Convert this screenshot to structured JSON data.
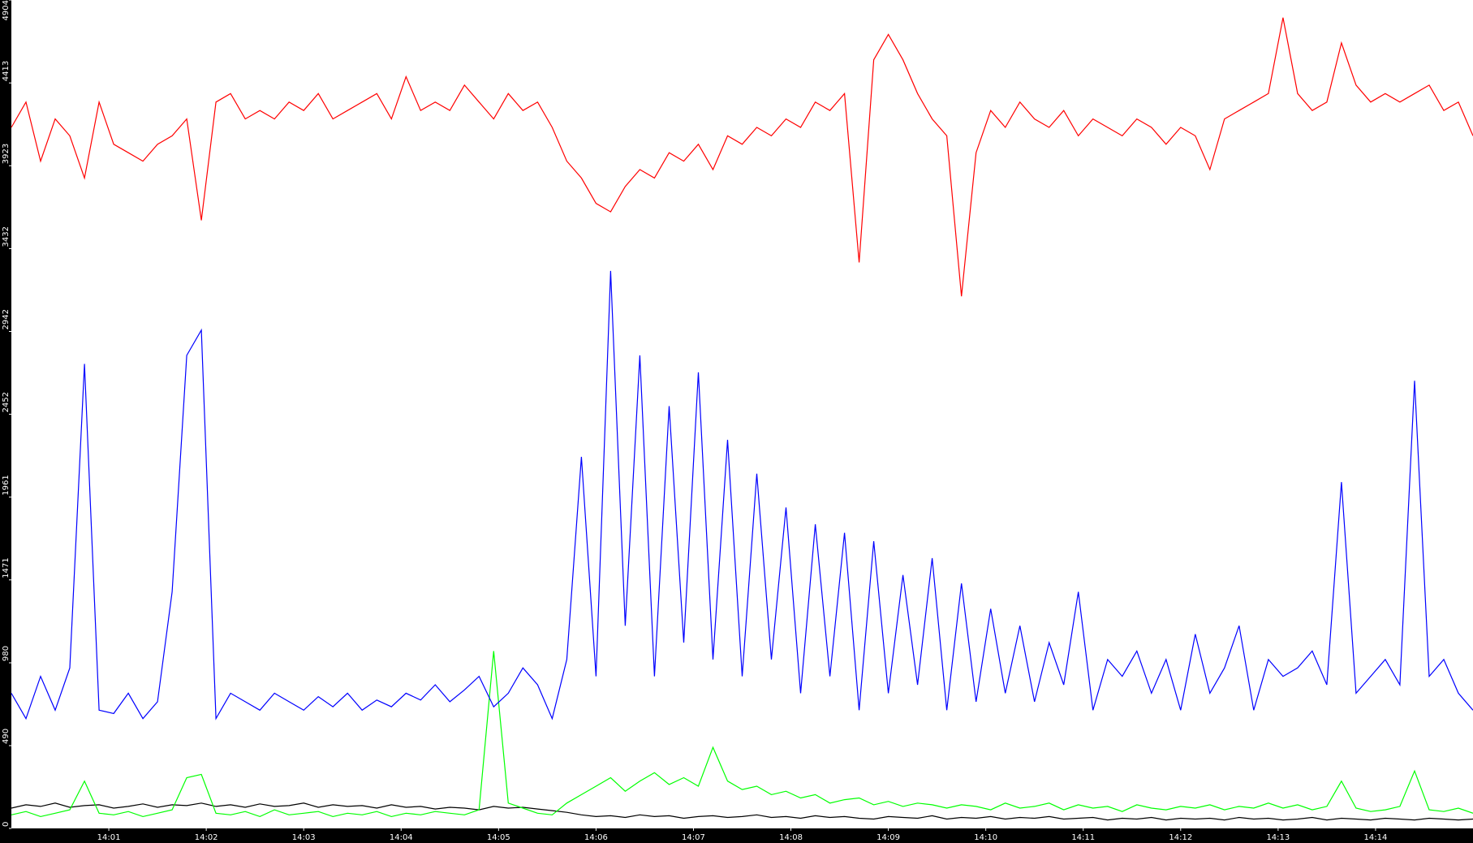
{
  "chart_data": {
    "type": "line",
    "x": [
      0,
      0.15,
      0.3,
      0.45,
      0.6,
      0.75,
      0.9,
      1.05,
      1.2,
      1.35,
      1.5,
      1.65,
      1.8,
      1.95,
      2.1,
      2.25,
      2.4,
      2.55,
      2.7,
      2.85,
      3,
      3.15,
      3.3,
      3.45,
      3.6,
      3.75,
      3.9,
      4.05,
      4.2,
      4.35,
      4.5,
      4.65,
      4.8,
      4.95,
      5.1,
      5.25,
      5.4,
      5.55,
      5.7,
      5.85,
      6,
      6.15,
      6.3,
      6.45,
      6.6,
      6.75,
      6.9,
      7.05,
      7.2,
      7.35,
      7.5,
      7.65,
      7.8,
      7.95,
      8.1,
      8.25,
      8.4,
      8.55,
      8.7,
      8.85,
      9,
      9.15,
      9.3,
      9.45,
      9.6,
      9.75,
      9.9,
      10.05,
      10.2,
      10.35,
      10.5,
      10.65,
      10.8,
      10.95,
      11.1,
      11.25,
      11.4,
      11.55,
      11.7,
      11.85,
      12,
      12.15,
      12.3,
      12.45,
      12.6,
      12.75,
      12.9,
      13.05,
      13.2,
      13.35,
      13.5,
      13.65,
      13.8,
      13.95,
      14.1,
      14.25,
      14.4,
      14.55,
      14.7,
      14.85,
      15
    ],
    "series": [
      {
        "color": "#ff0000",
        "values": [
          4150,
          4300,
          3950,
          4200,
          4100,
          3850,
          4300,
          4050,
          4000,
          3950,
          4050,
          4100,
          4200,
          3600,
          4300,
          4350,
          4200,
          4250,
          4200,
          4300,
          4250,
          4350,
          4200,
          4250,
          4300,
          4350,
          4200,
          4450,
          4250,
          4300,
          4250,
          4400,
          4300,
          4200,
          4350,
          4250,
          4300,
          4150,
          3950,
          3850,
          3700,
          3650,
          3800,
          3900,
          3850,
          4000,
          3950,
          4050,
          3900,
          4100,
          4050,
          4150,
          4100,
          4200,
          4150,
          4300,
          4250,
          4350,
          3350,
          4550,
          4700,
          4550,
          4350,
          4200,
          4100,
          3150,
          4000,
          4250,
          4150,
          4300,
          4200,
          4150,
          4250,
          4100,
          4200,
          4150,
          4100,
          4200,
          4150,
          4050,
          4150,
          4100,
          3900,
          4200,
          4250,
          4300,
          4350,
          4800,
          4350,
          4250,
          4300,
          4650,
          4400,
          4300,
          4350,
          4300,
          4350,
          4400,
          4250,
          4300,
          4100
        ]
      },
      {
        "color": "#0000ff",
        "values": [
          800,
          650,
          900,
          700,
          950,
          2750,
          700,
          680,
          800,
          650,
          750,
          1400,
          2800,
          2950,
          650,
          800,
          750,
          700,
          800,
          750,
          700,
          780,
          720,
          800,
          700,
          760,
          720,
          800,
          760,
          850,
          750,
          820,
          900,
          720,
          800,
          950,
          850,
          650,
          1000,
          2200,
          900,
          3300,
          1200,
          2800,
          900,
          2500,
          1100,
          2700,
          1000,
          2300,
          900,
          2100,
          1000,
          1900,
          800,
          1800,
          900,
          1750,
          700,
          1700,
          800,
          1500,
          850,
          1600,
          700,
          1450,
          750,
          1300,
          800,
          1200,
          750,
          1100,
          850,
          1400,
          700,
          1000,
          900,
          1050,
          800,
          1000,
          700,
          1150,
          800,
          950,
          1200,
          700,
          1000,
          900,
          950,
          1050,
          850,
          2050,
          800,
          900,
          1000,
          850,
          2650,
          900,
          1000,
          800,
          700
        ]
      },
      {
        "color": "#00ff00",
        "values": [
          80,
          100,
          70,
          90,
          110,
          280,
          90,
          80,
          100,
          70,
          90,
          110,
          300,
          320,
          90,
          80,
          100,
          70,
          110,
          80,
          90,
          100,
          70,
          90,
          80,
          100,
          70,
          90,
          80,
          100,
          90,
          80,
          110,
          1050,
          150,
          120,
          90,
          80,
          150,
          200,
          250,
          300,
          220,
          280,
          330,
          260,
          300,
          250,
          480,
          280,
          230,
          250,
          200,
          220,
          180,
          200,
          150,
          170,
          180,
          140,
          160,
          130,
          150,
          140,
          120,
          140,
          130,
          110,
          150,
          120,
          130,
          150,
          110,
          140,
          120,
          130,
          100,
          140,
          120,
          110,
          130,
          120,
          140,
          110,
          130,
          120,
          150,
          120,
          140,
          110,
          130,
          280,
          120,
          100,
          110,
          130,
          340,
          110,
          100,
          120,
          90
        ]
      },
      {
        "color": "#000000",
        "values": [
          120,
          140,
          130,
          150,
          125,
          135,
          140,
          120,
          130,
          145,
          125,
          140,
          135,
          150,
          130,
          140,
          125,
          145,
          130,
          135,
          150,
          125,
          140,
          130,
          135,
          120,
          140,
          125,
          130,
          115,
          125,
          120,
          110,
          130,
          120,
          125,
          115,
          105,
          95,
          80,
          70,
          75,
          65,
          80,
          70,
          75,
          60,
          70,
          75,
          65,
          70,
          80,
          65,
          70,
          60,
          75,
          65,
          70,
          60,
          55,
          70,
          65,
          60,
          75,
          55,
          65,
          60,
          70,
          55,
          65,
          60,
          70,
          55,
          60,
          65,
          50,
          60,
          55,
          65,
          50,
          60,
          55,
          60,
          50,
          65,
          55,
          60,
          50,
          55,
          65,
          50,
          60,
          55,
          50,
          60,
          55,
          50,
          60,
          55,
          50,
          55
        ]
      }
    ],
    "xlim": [
      0,
      15
    ],
    "xticks": [
      {
        "value": 1,
        "label": "14:01"
      },
      {
        "value": 2,
        "label": "14:02"
      },
      {
        "value": 3,
        "label": "14:03"
      },
      {
        "value": 4,
        "label": "14:04"
      },
      {
        "value": 5,
        "label": "14:05"
      },
      {
        "value": 6,
        "label": "14:06"
      },
      {
        "value": 7,
        "label": "14:07"
      },
      {
        "value": 8,
        "label": "14:08"
      },
      {
        "value": 9,
        "label": "14:09"
      },
      {
        "value": 10,
        "label": "14:10"
      },
      {
        "value": 11,
        "label": "14:11"
      },
      {
        "value": 12,
        "label": "14:12"
      },
      {
        "value": 13,
        "label": "14:13"
      },
      {
        "value": 14,
        "label": "14:14"
      }
    ],
    "ylim": [
      0,
      4904
    ],
    "yticks": [
      0,
      490,
      980,
      1471,
      1961,
      2452,
      2942,
      3432,
      3923,
      4413,
      4904
    ]
  }
}
